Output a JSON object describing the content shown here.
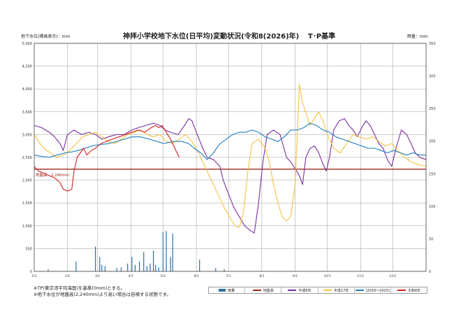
{
  "page": {
    "title": "神拝小学校地下水位(日平均)変動状況(令和8(2026)年)",
    "datum": "T･P基準",
    "left_unit": "地下水位(標高表示)：mm",
    "right_unit": "雨量：mm",
    "notes": [
      "※TP(東京湾平均海面)を基準(0mm)とする。",
      "※地下水位が地盤高(2,240mm)より高い場合は自噴する状態です。"
    ],
    "ground_label": "地盤高　2,240mm"
  },
  "legend": [
    {
      "name": "雨量",
      "color": "#2e6da4",
      "kind": "bar"
    },
    {
      "name": "地盤高",
      "color": "#a0281c",
      "kind": "line"
    },
    {
      "name": "平成6年",
      "color": "#7a2fa0",
      "kind": "line"
    },
    {
      "name": "平成17年",
      "color": "#f5c243",
      "kind": "line"
    },
    {
      "name": "(2016～2025)",
      "color": "#1e7fc0",
      "kind": "line"
    },
    {
      "name": "令和8年",
      "color": "#d62020",
      "kind": "line"
    }
  ],
  "chart_data": {
    "type": "line",
    "title": "神拝小学校地下水位(日平均)変動状況(令和8(2026)年)",
    "x_axis": {
      "ticks": [
        "1/1",
        "2/1",
        "3/1",
        "4/1",
        "5/1",
        "6/1",
        "7/1",
        "8/1",
        "9/1",
        "10/1",
        "11/1",
        "12/1"
      ],
      "tick_days": [
        1,
        32,
        60,
        91,
        121,
        152,
        182,
        213,
        244,
        274,
        305,
        335
      ],
      "range_days": [
        1,
        366
      ]
    },
    "y_left": {
      "label": "地下水位(標高表示)：mm",
      "range": [
        0,
        5000
      ],
      "ticks": [
        0,
        500,
        1000,
        1500,
        2000,
        2500,
        3000,
        3500,
        4000,
        4500,
        5000
      ],
      "tick_labels": [
        "0",
        "500",
        "1,000",
        "1,500",
        "2,000",
        "2,500",
        "3,000",
        "3,500",
        "4,000",
        "4,500",
        "5,000"
      ]
    },
    "y_right": {
      "label": "雨量：mm",
      "range": [
        0,
        350
      ],
      "ticks": [
        0,
        50,
        100,
        150,
        200,
        250,
        300,
        350
      ],
      "tick_labels": [
        "0",
        "50",
        "100",
        "150",
        "200",
        "250",
        "300",
        "350"
      ]
    },
    "grid": true,
    "ground_level": 2240,
    "series": [
      {
        "name": "平成6年",
        "color": "#7a2fa0",
        "points": [
          [
            1,
            3200
          ],
          [
            8,
            3150
          ],
          [
            15,
            3050
          ],
          [
            20,
            2950
          ],
          [
            25,
            2800
          ],
          [
            28,
            2650
          ],
          [
            32,
            3000
          ],
          [
            38,
            3100
          ],
          [
            45,
            3000
          ],
          [
            52,
            3050
          ],
          [
            58,
            3000
          ],
          [
            64,
            2900
          ],
          [
            70,
            2950
          ],
          [
            78,
            3000
          ],
          [
            85,
            3000
          ],
          [
            92,
            3100
          ],
          [
            98,
            3150
          ],
          [
            105,
            3200
          ],
          [
            112,
            3250
          ],
          [
            118,
            3200
          ],
          [
            123,
            3100
          ],
          [
            128,
            3050
          ],
          [
            135,
            3000
          ],
          [
            141,
            3200
          ],
          [
            145,
            3350
          ],
          [
            148,
            3300
          ],
          [
            152,
            3050
          ],
          [
            158,
            2700
          ],
          [
            162,
            2500
          ],
          [
            168,
            2450
          ],
          [
            174,
            2300
          ],
          [
            177,
            2000
          ],
          [
            182,
            1700
          ],
          [
            187,
            1400
          ],
          [
            192,
            1200
          ],
          [
            197,
            1000
          ],
          [
            202,
            900
          ],
          [
            206,
            840
          ],
          [
            210,
            1500
          ],
          [
            214,
            2400
          ],
          [
            218,
            3000
          ],
          [
            224,
            3100
          ],
          [
            230,
            3000
          ],
          [
            236,
            2500
          ],
          [
            240,
            2400
          ],
          [
            244,
            2250
          ],
          [
            248,
            2100
          ],
          [
            251,
            1900
          ],
          [
            254,
            2500
          ],
          [
            258,
            2700
          ],
          [
            262,
            2750
          ],
          [
            266,
            2600
          ],
          [
            270,
            2350
          ],
          [
            273,
            2200
          ],
          [
            276,
            2500
          ],
          [
            280,
            3100
          ],
          [
            285,
            3300
          ],
          [
            290,
            3350
          ],
          [
            294,
            3200
          ],
          [
            298,
            3100
          ],
          [
            302,
            2950
          ],
          [
            306,
            3150
          ],
          [
            310,
            3300
          ],
          [
            314,
            3200
          ],
          [
            318,
            3000
          ],
          [
            322,
            2800
          ],
          [
            326,
            2700
          ],
          [
            330,
            2450
          ],
          [
            334,
            2300
          ],
          [
            338,
            2700
          ],
          [
            343,
            3100
          ],
          [
            348,
            3000
          ],
          [
            352,
            2800
          ],
          [
            356,
            2600
          ],
          [
            360,
            2500
          ],
          [
            366,
            2450
          ]
        ]
      },
      {
        "name": "平成17年",
        "color": "#f5c243",
        "points": [
          [
            1,
            3000
          ],
          [
            5,
            2850
          ],
          [
            10,
            2700
          ],
          [
            16,
            2600
          ],
          [
            22,
            2500
          ],
          [
            28,
            2550
          ],
          [
            34,
            2650
          ],
          [
            40,
            2800
          ],
          [
            46,
            2950
          ],
          [
            52,
            3000
          ],
          [
            58,
            3050
          ],
          [
            64,
            2950
          ],
          [
            70,
            2850
          ],
          [
            76,
            2800
          ],
          [
            82,
            2900
          ],
          [
            88,
            3000
          ],
          [
            94,
            3050
          ],
          [
            100,
            3100
          ],
          [
            106,
            3000
          ],
          [
            112,
            2950
          ],
          [
            118,
            3000
          ],
          [
            124,
            2850
          ],
          [
            130,
            2800
          ],
          [
            136,
            2900
          ],
          [
            142,
            3000
          ],
          [
            148,
            2850
          ],
          [
            154,
            2600
          ],
          [
            160,
            2300
          ],
          [
            166,
            2000
          ],
          [
            172,
            1700
          ],
          [
            178,
            1400
          ],
          [
            184,
            1150
          ],
          [
            188,
            1000
          ],
          [
            192,
            960
          ],
          [
            196,
            1300
          ],
          [
            200,
            2200
          ],
          [
            204,
            2800
          ],
          [
            210,
            2900
          ],
          [
            216,
            2700
          ],
          [
            220,
            2400
          ],
          [
            224,
            1900
          ],
          [
            228,
            1500
          ],
          [
            232,
            1200
          ],
          [
            236,
            1100
          ],
          [
            240,
            1200
          ],
          [
            244,
            1900
          ],
          [
            248,
            4100
          ],
          [
            251,
            3700
          ],
          [
            255,
            3400
          ],
          [
            258,
            3200
          ],
          [
            262,
            3350
          ],
          [
            266,
            3500
          ],
          [
            270,
            3300
          ],
          [
            274,
            3000
          ],
          [
            280,
            2700
          ],
          [
            286,
            2600
          ],
          [
            292,
            2800
          ],
          [
            298,
            3000
          ],
          [
            304,
            2950
          ],
          [
            310,
            2900
          ],
          [
            316,
            2950
          ],
          [
            322,
            2850
          ],
          [
            328,
            2750
          ],
          [
            334,
            2800
          ],
          [
            340,
            2650
          ],
          [
            346,
            2500
          ],
          [
            352,
            2400
          ],
          [
            358,
            2350
          ],
          [
            366,
            2300
          ]
        ]
      },
      {
        "name": "(2016～2025)",
        "color": "#1e7fc0",
        "points": [
          [
            1,
            2550
          ],
          [
            8,
            2520
          ],
          [
            15,
            2500
          ],
          [
            22,
            2550
          ],
          [
            30,
            2600
          ],
          [
            36,
            2620
          ],
          [
            42,
            2650
          ],
          [
            48,
            2700
          ],
          [
            55,
            2750
          ],
          [
            62,
            2780
          ],
          [
            70,
            2800
          ],
          [
            78,
            2850
          ],
          [
            85,
            2900
          ],
          [
            92,
            2950
          ],
          [
            100,
            2950
          ],
          [
            108,
            2900
          ],
          [
            115,
            2850
          ],
          [
            122,
            2800
          ],
          [
            130,
            2850
          ],
          [
            138,
            2850
          ],
          [
            145,
            2800
          ],
          [
            150,
            2700
          ],
          [
            156,
            2600
          ],
          [
            162,
            2450
          ],
          [
            168,
            2600
          ],
          [
            174,
            2800
          ],
          [
            180,
            2900
          ],
          [
            186,
            3000
          ],
          [
            192,
            3050
          ],
          [
            198,
            3050
          ],
          [
            204,
            3100
          ],
          [
            210,
            3050
          ],
          [
            216,
            2950
          ],
          [
            222,
            2900
          ],
          [
            228,
            2850
          ],
          [
            234,
            2950
          ],
          [
            240,
            3100
          ],
          [
            246,
            3100
          ],
          [
            252,
            3150
          ],
          [
            258,
            3250
          ],
          [
            264,
            3200
          ],
          [
            270,
            3100
          ],
          [
            276,
            3050
          ],
          [
            282,
            2950
          ],
          [
            288,
            2900
          ],
          [
            294,
            2850
          ],
          [
            300,
            2800
          ],
          [
            306,
            2750
          ],
          [
            312,
            2700
          ],
          [
            318,
            2700
          ],
          [
            324,
            2650
          ],
          [
            330,
            2600
          ],
          [
            336,
            2650
          ],
          [
            342,
            2600
          ],
          [
            348,
            2550
          ],
          [
            354,
            2600
          ],
          [
            360,
            2550
          ],
          [
            366,
            2550
          ]
        ]
      },
      {
        "name": "令和8年",
        "color": "#d62020",
        "points": [
          [
            1,
            2300
          ],
          [
            5,
            2200
          ],
          [
            10,
            2150
          ],
          [
            15,
            2100
          ],
          [
            20,
            2050
          ],
          [
            25,
            1950
          ],
          [
            28,
            1800
          ],
          [
            32,
            1760
          ],
          [
            36,
            1800
          ],
          [
            38,
            2200
          ],
          [
            41,
            2500
          ],
          [
            44,
            2600
          ],
          [
            47,
            2700
          ],
          [
            50,
            2550
          ],
          [
            54,
            2650
          ],
          [
            58,
            2700
          ],
          [
            63,
            2800
          ],
          [
            68,
            2850
          ],
          [
            74,
            2900
          ],
          [
            80,
            2950
          ],
          [
            86,
            3000
          ],
          [
            92,
            3050
          ],
          [
            98,
            3100
          ],
          [
            104,
            3050
          ],
          [
            110,
            3150
          ],
          [
            114,
            3200
          ],
          [
            117,
            3150
          ],
          [
            120,
            3200
          ],
          [
            124,
            3050
          ],
          [
            128,
            2900
          ],
          [
            132,
            2700
          ],
          [
            136,
            2500
          ]
        ]
      }
    ],
    "rain": {
      "name": "雨量",
      "color": "#2e6da4",
      "bars": [
        [
          14,
          3
        ],
        [
          40,
          15
        ],
        [
          58,
          38
        ],
        [
          62,
          22
        ],
        [
          64,
          10
        ],
        [
          67,
          8
        ],
        [
          78,
          5
        ],
        [
          82,
          6
        ],
        [
          88,
          12
        ],
        [
          92,
          22
        ],
        [
          95,
          10
        ],
        [
          99,
          15
        ],
        [
          103,
          30
        ],
        [
          106,
          8
        ],
        [
          109,
          12
        ],
        [
          112,
          32
        ],
        [
          114,
          10
        ],
        [
          117,
          6
        ],
        [
          121,
          60
        ],
        [
          124,
          62
        ],
        [
          128,
          22
        ],
        [
          130,
          58
        ],
        [
          155,
          18
        ],
        [
          170,
          5
        ],
        [
          178,
          3
        ]
      ]
    }
  }
}
